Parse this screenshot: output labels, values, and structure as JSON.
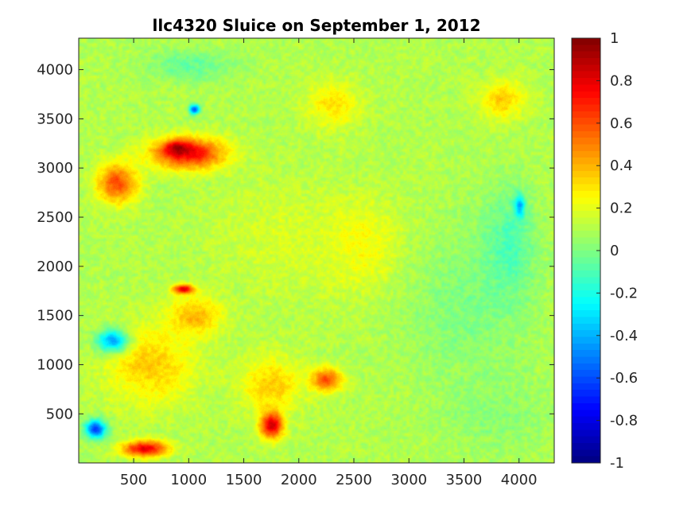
{
  "chart_data": {
    "type": "heatmap",
    "title": "llc4320 Sluice on September 1, 2012",
    "xlabel": "",
    "ylabel": "",
    "xlim": [
      1,
      4320
    ],
    "ylim": [
      1,
      4320
    ],
    "x_ticks": [
      500,
      1000,
      1500,
      2000,
      2500,
      3000,
      3500,
      4000
    ],
    "y_ticks": [
      500,
      1000,
      1500,
      2000,
      2500,
      3000,
      3500,
      4000
    ],
    "colorbar": {
      "colormap": "jet",
      "clim": [
        -1,
        1
      ],
      "ticks": [
        "1",
        "0.8",
        "0.6",
        "0.4",
        "0.2",
        "0",
        "-0.2",
        "-0.4",
        "-0.6",
        "-0.8",
        "-1"
      ]
    },
    "background_value": 0.1,
    "regions": [
      {
        "x": 1000,
        "y": 3150,
        "rx": 420,
        "ry": 200,
        "value": 0.75
      },
      {
        "x": 900,
        "y": 3200,
        "rx": 160,
        "ry": 90,
        "value": 0.95
      },
      {
        "x": 350,
        "y": 2850,
        "rx": 230,
        "ry": 250,
        "value": 0.6
      },
      {
        "x": 650,
        "y": 1000,
        "rx": 500,
        "ry": 500,
        "value": 0.35
      },
      {
        "x": 600,
        "y": 150,
        "rx": 250,
        "ry": 100,
        "value": 0.8
      },
      {
        "x": 1750,
        "y": 400,
        "rx": 130,
        "ry": 180,
        "value": 0.9
      },
      {
        "x": 2250,
        "y": 850,
        "rx": 180,
        "ry": 150,
        "value": 0.6
      },
      {
        "x": 1750,
        "y": 800,
        "rx": 350,
        "ry": 350,
        "value": 0.35
      },
      {
        "x": 1050,
        "y": 1500,
        "rx": 300,
        "ry": 250,
        "value": 0.4
      },
      {
        "x": 950,
        "y": 1770,
        "rx": 120,
        "ry": 60,
        "value": 0.85
      },
      {
        "x": 2300,
        "y": 3650,
        "rx": 300,
        "ry": 300,
        "value": 0.3
      },
      {
        "x": 3850,
        "y": 3700,
        "rx": 250,
        "ry": 250,
        "value": 0.35
      },
      {
        "x": 1800,
        "y": 2300,
        "rx": 700,
        "ry": 700,
        "value": 0.17
      },
      {
        "x": 2600,
        "y": 2200,
        "rx": 500,
        "ry": 600,
        "value": 0.25
      },
      {
        "x": 1000,
        "y": 4050,
        "rx": 500,
        "ry": 200,
        "value": -0.05
      },
      {
        "x": 1050,
        "y": 3600,
        "rx": 60,
        "ry": 60,
        "value": -0.6
      },
      {
        "x": 4000,
        "y": 2600,
        "rx": 60,
        "ry": 150,
        "value": -0.8
      },
      {
        "x": 150,
        "y": 350,
        "rx": 120,
        "ry": 120,
        "value": -0.6
      },
      {
        "x": 300,
        "y": 1250,
        "rx": 180,
        "ry": 150,
        "value": -0.4
      },
      {
        "x": 3500,
        "y": 1600,
        "rx": 700,
        "ry": 1000,
        "value": 0.0
      },
      {
        "x": 3800,
        "y": 500,
        "rx": 600,
        "ry": 500,
        "value": 0.02
      },
      {
        "x": 3900,
        "y": 2200,
        "rx": 300,
        "ry": 700,
        "value": -0.1
      }
    ]
  }
}
